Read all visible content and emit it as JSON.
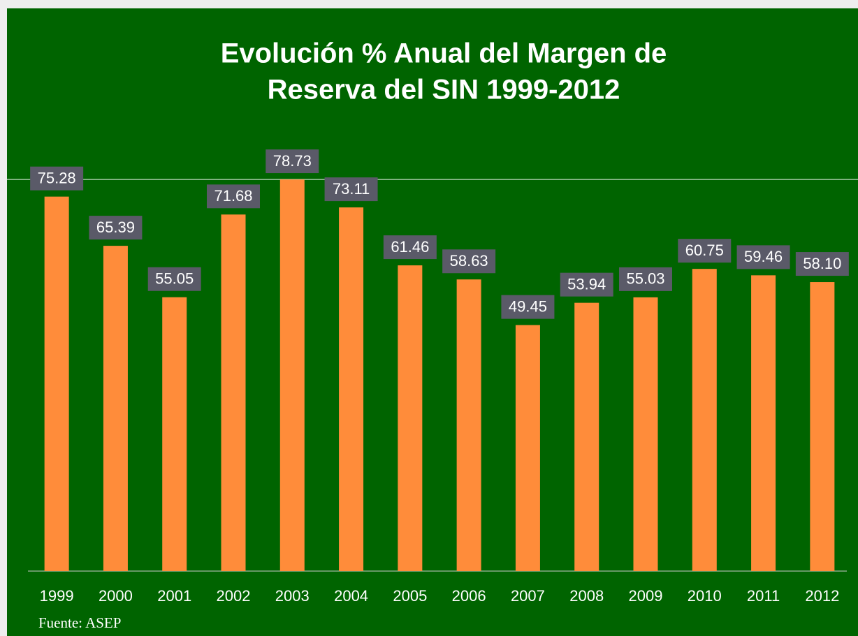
{
  "chart_data": {
    "type": "bar",
    "title": [
      "Evolución % Anual del Margen  de",
      "Reserva del SIN 1999-2012"
    ],
    "categories": [
      "1999",
      "2000",
      "2001",
      "2002",
      "2003",
      "2004",
      "2005",
      "2006",
      "2007",
      "2008",
      "2009",
      "2010",
      "2011",
      "2012"
    ],
    "values": [
      75.28,
      65.39,
      55.05,
      71.68,
      78.73,
      73.11,
      61.46,
      58.63,
      49.45,
      53.94,
      55.03,
      60.75,
      59.46,
      58.1
    ],
    "value_labels": [
      "75.28",
      "65.39",
      "55.05",
      "71.68",
      "78.73",
      "73.11",
      "61.46",
      "58.63",
      "49.45",
      "53.94",
      "55.03",
      "60.75",
      "59.46",
      "58.10"
    ],
    "color": "#ff8c3a",
    "ylim": [
      0,
      80
    ],
    "source": "Fuente:  ASEP"
  }
}
